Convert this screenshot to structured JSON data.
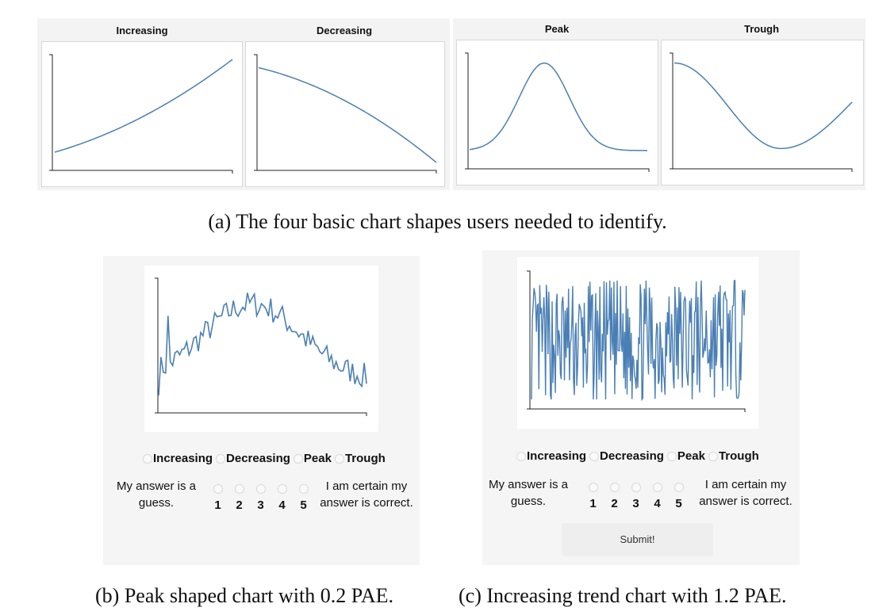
{
  "figure_a": {
    "charts": [
      {
        "title": "Increasing",
        "shape": "increasing"
      },
      {
        "title": "Decreasing",
        "shape": "decreasing"
      },
      {
        "title": "Peak",
        "shape": "peak"
      },
      {
        "title": "Trough",
        "shape": "trough"
      }
    ],
    "caption": "(a) The four basic chart shapes users needed to identify."
  },
  "line_color": "#4a7fb5",
  "panel_b": {
    "choices": [
      "Increasing",
      "Decreasing",
      "Peak",
      "Trough"
    ],
    "left_label_line1": "My answer is a",
    "left_label_line2": "guess.",
    "right_label_line1": "I am certain my",
    "right_label_line2": "answer is correct.",
    "scale": [
      "1",
      "2",
      "3",
      "4",
      "5"
    ],
    "caption": "(b) Peak shaped chart with 0.2 PAE."
  },
  "panel_c": {
    "choices": [
      "Increasing",
      "Decreasing",
      "Peak",
      "Trough"
    ],
    "left_label_line1": "My answer is a",
    "left_label_line2": "guess.",
    "right_label_line1": "I am certain my",
    "right_label_line2": "answer is correct.",
    "scale": [
      "1",
      "2",
      "3",
      "4",
      "5"
    ],
    "submit_label": "Submit!",
    "caption": "(c) Increasing trend chart with 1.2 PAE."
  }
}
